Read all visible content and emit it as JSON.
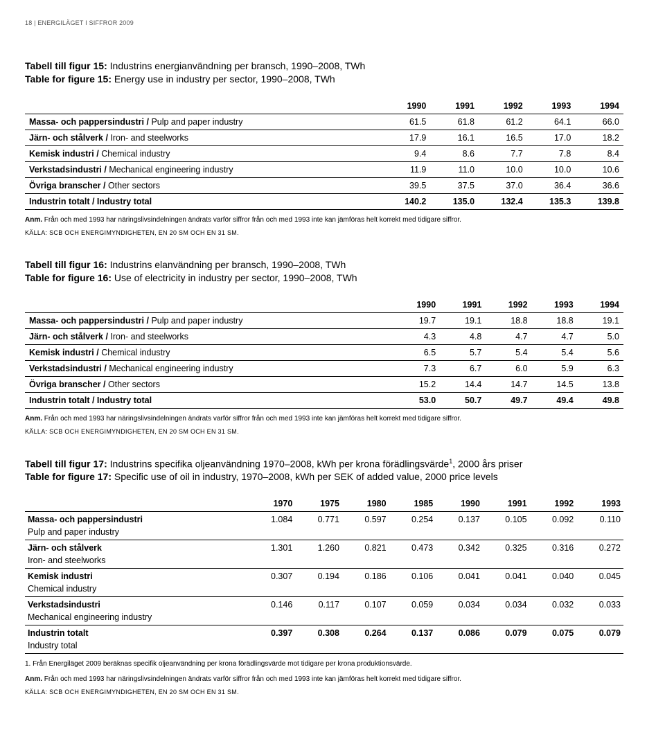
{
  "page_header": "18 | ENERGILÄGET I SIFFROR 2009",
  "t15": {
    "title_sv_bold": "Tabell till figur 15:",
    "title_sv_rest": " Industrins energianvändning per bransch, 1990–2008, TWh",
    "title_en_bold": "Table for figure 15:",
    "title_en_rest": " Energy use in industry per sector, 1990–2008, TWh",
    "years": [
      "1990",
      "1991",
      "1992",
      "1993",
      "1994"
    ],
    "rows": [
      {
        "label_b": "Massa- och pappersindustri /",
        "label_r": " Pulp and paper industry",
        "v": [
          "61.5",
          "61.8",
          "61.2",
          "64.1",
          "66.0"
        ]
      },
      {
        "label_b": "Järn- och stålverk /",
        "label_r": " Iron- and steelworks",
        "v": [
          "17.9",
          "16.1",
          "16.5",
          "17.0",
          "18.2"
        ]
      },
      {
        "label_b": "Kemisk industri /",
        "label_r": " Chemical industry",
        "v": [
          "9.4",
          "8.6",
          "7.7",
          "7.8",
          "8.4"
        ]
      },
      {
        "label_b": "Verkstadsindustri /",
        "label_r": " Mechanical engineering industry",
        "v": [
          "11.9",
          "11.0",
          "10.0",
          "10.0",
          "10.6"
        ]
      },
      {
        "label_b": "Övriga branscher /",
        "label_r": " Other sectors",
        "v": [
          "39.5",
          "37.5",
          "37.0",
          "36.4",
          "36.6"
        ]
      },
      {
        "label_b": "Industrin totalt /",
        "label_r": " Industry total",
        "v": [
          "140.2",
          "135.0",
          "132.4",
          "135.3",
          "139.8"
        ],
        "total": true
      }
    ],
    "note_b": "Anm.",
    "note_r": " Från och med 1993 har näringslivsindelningen ändrats varför siffror från och med 1993 inte kan jämföras helt korrekt med tidigare siffror.",
    "source": "KÄLLA: SCB OCH ENERGIMYNDIGHETEN, EN 20 SM OCH EN 31 SM."
  },
  "t16": {
    "title_sv_bold": "Tabell till figur 16:",
    "title_sv_rest": " Industrins elanvändning per bransch, 1990–2008, TWh",
    "title_en_bold": "Table for figure 16:",
    "title_en_rest": " Use of electricity in industry per sector, 1990–2008, TWh",
    "years": [
      "1990",
      "1991",
      "1992",
      "1993",
      "1994"
    ],
    "rows": [
      {
        "label_b": "Massa- och pappersindustri /",
        "label_r": " Pulp and paper industry",
        "v": [
          "19.7",
          "19.1",
          "18.8",
          "18.8",
          "19.1"
        ]
      },
      {
        "label_b": "Järn- och stålverk /",
        "label_r": " Iron- and steelworks",
        "v": [
          "4.3",
          "4.8",
          "4.7",
          "4.7",
          "5.0"
        ]
      },
      {
        "label_b": "Kemisk industri /",
        "label_r": " Chemical industry",
        "v": [
          "6.5",
          "5.7",
          "5.4",
          "5.4",
          "5.6"
        ]
      },
      {
        "label_b": "Verkstadsindustri /",
        "label_r": " Mechanical engineering industry",
        "v": [
          "7.3",
          "6.7",
          "6.0",
          "5.9",
          "6.3"
        ]
      },
      {
        "label_b": "Övriga branscher /",
        "label_r": " Other sectors",
        "v": [
          "15.2",
          "14.4",
          "14.7",
          "14.5",
          "13.8"
        ]
      },
      {
        "label_b": "Industrin totalt /",
        "label_r": " Industry total",
        "v": [
          "53.0",
          "50.7",
          "49.7",
          "49.4",
          "49.8"
        ],
        "total": true
      }
    ],
    "note_b": "Anm.",
    "note_r": " Från och med 1993 har näringslivsindelningen ändrats varför siffror från och med 1993 inte kan jämföras helt korrekt med tidigare siffror.",
    "source": "KÄLLA: SCB OCH ENERGIMYNDIGHETEN, EN 20 SM OCH EN 31 SM."
  },
  "t17": {
    "title_sv_bold": "Tabell till figur 17:",
    "title_sv_rest": " Industrins specifika oljeanvändning 1970–2008, kWh per krona förädlingsvärde",
    "title_sv_sup": "1",
    "title_sv_tail": ", 2000 års priser",
    "title_en_bold": "Table for figure 17:",
    "title_en_rest": " Specific use of oil in industry, 1970–2008, kWh per SEK of added value, 2000 price levels",
    "years": [
      "1970",
      "1975",
      "1980",
      "1985",
      "1990",
      "1991",
      "1992",
      "1993"
    ],
    "rows": [
      {
        "sv": "Massa- och pappersindustri",
        "en": "Pulp and paper industry",
        "v": [
          "1.084",
          "0.771",
          "0.597",
          "0.254",
          "0.137",
          "0.105",
          "0.092",
          "0.110"
        ]
      },
      {
        "sv": "Järn- och stålverk",
        "en": "Iron- and steelworks",
        "v": [
          "1.301",
          "1.260",
          "0.821",
          "0.473",
          "0.342",
          "0.325",
          "0.316",
          "0.272"
        ]
      },
      {
        "sv": "Kemisk industri",
        "en": "Chemical industry",
        "v": [
          "0.307",
          "0.194",
          "0.186",
          "0.106",
          "0.041",
          "0.041",
          "0.040",
          "0.045"
        ]
      },
      {
        "sv": "Verkstadsindustri",
        "en": "Mechanical engineering industry",
        "v": [
          "0.146",
          "0.117",
          "0.107",
          "0.059",
          "0.034",
          "0.034",
          "0.032",
          "0.033"
        ]
      },
      {
        "sv": "Industrin totalt",
        "en": "Industry total",
        "v": [
          "0.397",
          "0.308",
          "0.264",
          "0.137",
          "0.086",
          "0.079",
          "0.075",
          "0.079"
        ],
        "total": true
      }
    ],
    "fn1_sup": "1.",
    "fn1": " Från Energiläget 2009 beräknas specifik oljeanvändning per krona förädlingsvärde mot tidigare per krona produktionsvärde.",
    "note_b": "Anm.",
    "note_r": " Från och med 1993 har näringslivsindelningen ändrats varför siffror från och med 1993 inte kan jämföras helt korrekt med tidigare siffror.",
    "source": "KÄLLA: SCB OCH ENERGIMYNDIGHETEN, EN 20 SM OCH EN 31 SM."
  }
}
